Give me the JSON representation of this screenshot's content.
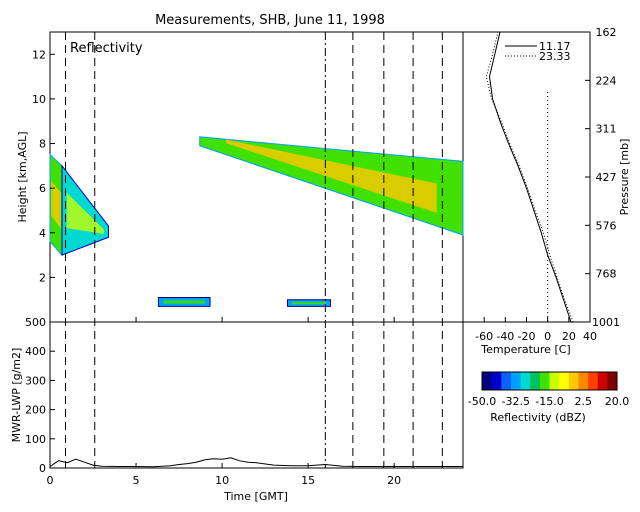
{
  "title": "Measurements, SHB, June 11, 1998",
  "chart_data": [
    {
      "id": "reflectivity",
      "type": "heatmap",
      "panel_label": "Reflectivity",
      "xlabel": "",
      "ylabel": "Height [km,AGL]",
      "xlim": [
        0,
        24
      ],
      "ylim": [
        0,
        13
      ],
      "yticks": [
        2,
        4,
        6,
        8,
        10,
        12
      ],
      "xticks": [
        0,
        5,
        10,
        15,
        20
      ],
      "vertical_markers": [
        {
          "t": 0.9,
          "style": "dashed"
        },
        {
          "t": 2.6,
          "style": "dashed"
        },
        {
          "t": 16.0,
          "style": "dashdot"
        },
        {
          "t": 17.6,
          "style": "dashed"
        },
        {
          "t": 19.4,
          "style": "dashed"
        },
        {
          "t": 21.1,
          "style": "dashed"
        },
        {
          "t": 22.8,
          "style": "dashed"
        }
      ],
      "cloud_regions": [
        {
          "t_start": 0.0,
          "t_end": 0.7,
          "base_start": 3.6,
          "base_end": 3.0,
          "top_start": 7.5,
          "top_end": 7.0,
          "dbz": -18
        },
        {
          "t_start": 0.7,
          "t_end": 3.4,
          "base_start": 3.0,
          "base_end": 3.8,
          "top_start": 7.0,
          "top_end": 4.3,
          "dbz": -30
        },
        {
          "t_start": 8.7,
          "t_end": 24.0,
          "base_start": 7.9,
          "base_end": 3.9,
          "top_start": 8.3,
          "top_end": 7.2,
          "dbz": -20
        },
        {
          "t_start": 6.3,
          "t_end": 9.3,
          "base_start": 0.7,
          "base_end": 0.7,
          "top_start": 1.1,
          "top_end": 1.1,
          "dbz": -35
        },
        {
          "t_start": 13.8,
          "t_end": 16.3,
          "base_start": 0.7,
          "base_end": 0.7,
          "top_start": 1.0,
          "top_end": 1.0,
          "dbz": -35
        }
      ]
    },
    {
      "id": "temperature",
      "type": "line",
      "xlabel": "Temperature [C]",
      "ylabel": "Pressure [mb]",
      "xlim": [
        -80,
        40
      ],
      "xticks": [
        -60,
        -40,
        -20,
        0,
        20,
        40
      ],
      "pressure_ticks": [
        162,
        224,
        311,
        427,
        576,
        768,
        1001
      ],
      "ylim_height_km": [
        0,
        13
      ],
      "series": [
        {
          "name": "11.17",
          "style": "solid",
          "points": [
            [
              0,
              22
            ],
            [
              1,
              15
            ],
            [
              2,
              8
            ],
            [
              3,
              0
            ],
            [
              4,
              -6
            ],
            [
              5,
              -13
            ],
            [
              6,
              -20
            ],
            [
              7,
              -28
            ],
            [
              8,
              -37
            ],
            [
              9,
              -45
            ],
            [
              10,
              -52
            ],
            [
              11,
              -55
            ],
            [
              12,
              -50
            ],
            [
              13,
              -45
            ]
          ]
        },
        {
          "name": "23.33",
          "style": "dotted",
          "points": [
            [
              0,
              24
            ],
            [
              1,
              16
            ],
            [
              2,
              9
            ],
            [
              3,
              2
            ],
            [
              4,
              -4
            ],
            [
              5,
              -12
            ],
            [
              6,
              -19
            ],
            [
              7,
              -27
            ],
            [
              8,
              -36
            ],
            [
              9,
              -44
            ],
            [
              10,
              -53
            ],
            [
              11,
              -58
            ],
            [
              12,
              -52
            ],
            [
              13,
              -47
            ]
          ]
        }
      ]
    },
    {
      "id": "lwp",
      "type": "line",
      "xlabel": "Time [GMT]",
      "ylabel": "MWR-LWP [g/m2]",
      "xlim": [
        0,
        24
      ],
      "ylim": [
        0,
        500
      ],
      "yticks": [
        0,
        100,
        200,
        300,
        400,
        500
      ],
      "xticks": [
        0,
        5,
        10,
        15,
        20
      ],
      "series": [
        {
          "name": "",
          "style": "solid",
          "x": [
            0,
            0.5,
            1,
            1.5,
            2,
            2.5,
            3,
            4,
            5,
            6,
            7,
            7.5,
            8,
            8.5,
            9,
            9.5,
            10,
            10.5,
            11,
            11.5,
            12,
            13,
            14,
            15,
            16,
            17,
            18,
            19,
            20,
            21,
            22,
            23,
            24
          ],
          "y": [
            5,
            25,
            18,
            30,
            20,
            10,
            6,
            5,
            5,
            4,
            8,
            12,
            15,
            20,
            28,
            32,
            30,
            35,
            25,
            20,
            18,
            10,
            8,
            8,
            12,
            6,
            5,
            5,
            5,
            5,
            5,
            5,
            5
          ]
        }
      ]
    }
  ],
  "colorbar": {
    "label": "Reflectivity (dBZ)",
    "range": [
      -50,
      20
    ],
    "tick_labels": [
      "-50.0",
      "-32.5",
      "-15.0",
      "2.5",
      "20.0"
    ],
    "colors": [
      "#000080",
      "#0000cc",
      "#1060ff",
      "#00a0ff",
      "#00d8d0",
      "#00c060",
      "#40e000",
      "#c8ff00",
      "#ffff00",
      "#ffc800",
      "#ff8800",
      "#ff4000",
      "#d00000",
      "#800000"
    ]
  }
}
